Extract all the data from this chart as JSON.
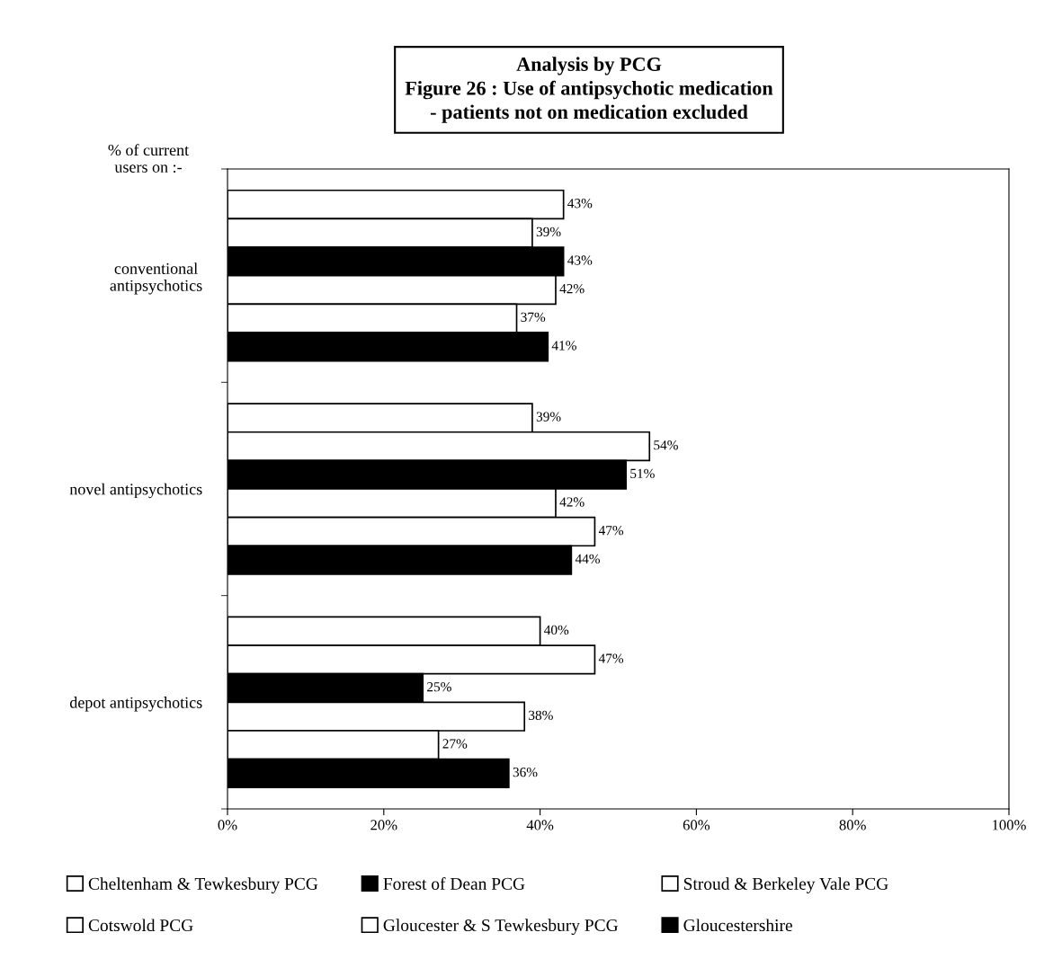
{
  "chart_data": {
    "type": "bar",
    "orientation": "horizontal",
    "title": "Analysis by PCG",
    "subtitle": "Figure 26 : Use of antipsychotic medication\n- patients not on medication excluded",
    "ylabel": "% of current\nusers on :-",
    "categories": [
      "conventional\nantipsychotics",
      "novel antipsychotics",
      "depot antipsychotics"
    ],
    "series": [
      {
        "name": "Cheltenham & Tewkesbury PCG",
        "color": "#ffffff",
        "values": [
          43,
          39,
          40
        ],
        "value_labels": [
          "43%",
          "39%",
          "40%"
        ]
      },
      {
        "name": "Cotswold PCG",
        "color": "#ffffff",
        "values": [
          39,
          54,
          47
        ],
        "value_labels": [
          "39%",
          "54%",
          "47%"
        ]
      },
      {
        "name": "Forest of Dean PCG",
        "color": "#000000",
        "values": [
          43,
          51,
          25
        ],
        "value_labels": [
          "43%",
          "51%",
          "25%"
        ]
      },
      {
        "name": "Gloucester & S Tewkesbury PCG",
        "color": "#ffffff",
        "values": [
          42,
          42,
          38
        ],
        "value_labels": [
          "42%",
          "42%",
          "38%"
        ]
      },
      {
        "name": "Stroud & Berkeley Vale PCG",
        "color": "#ffffff",
        "values": [
          37,
          47,
          27
        ],
        "value_labels": [
          "37%",
          "47%",
          "27%"
        ]
      },
      {
        "name": "Gloucestershire",
        "color": "#000000",
        "values": [
          41,
          44,
          36
        ],
        "value_labels": [
          "41%",
          "44%",
          "36%"
        ]
      }
    ],
    "xlim": [
      0,
      100
    ],
    "xticks": [
      {
        "value": 0,
        "label": "0%"
      },
      {
        "value": 20,
        "label": "20%"
      },
      {
        "value": 40,
        "label": "40%"
      },
      {
        "value": 60,
        "label": "60%"
      },
      {
        "value": 80,
        "label": "80%"
      },
      {
        "value": 100,
        "label": "100%"
      }
    ],
    "legend": "bottom",
    "grid": false
  }
}
